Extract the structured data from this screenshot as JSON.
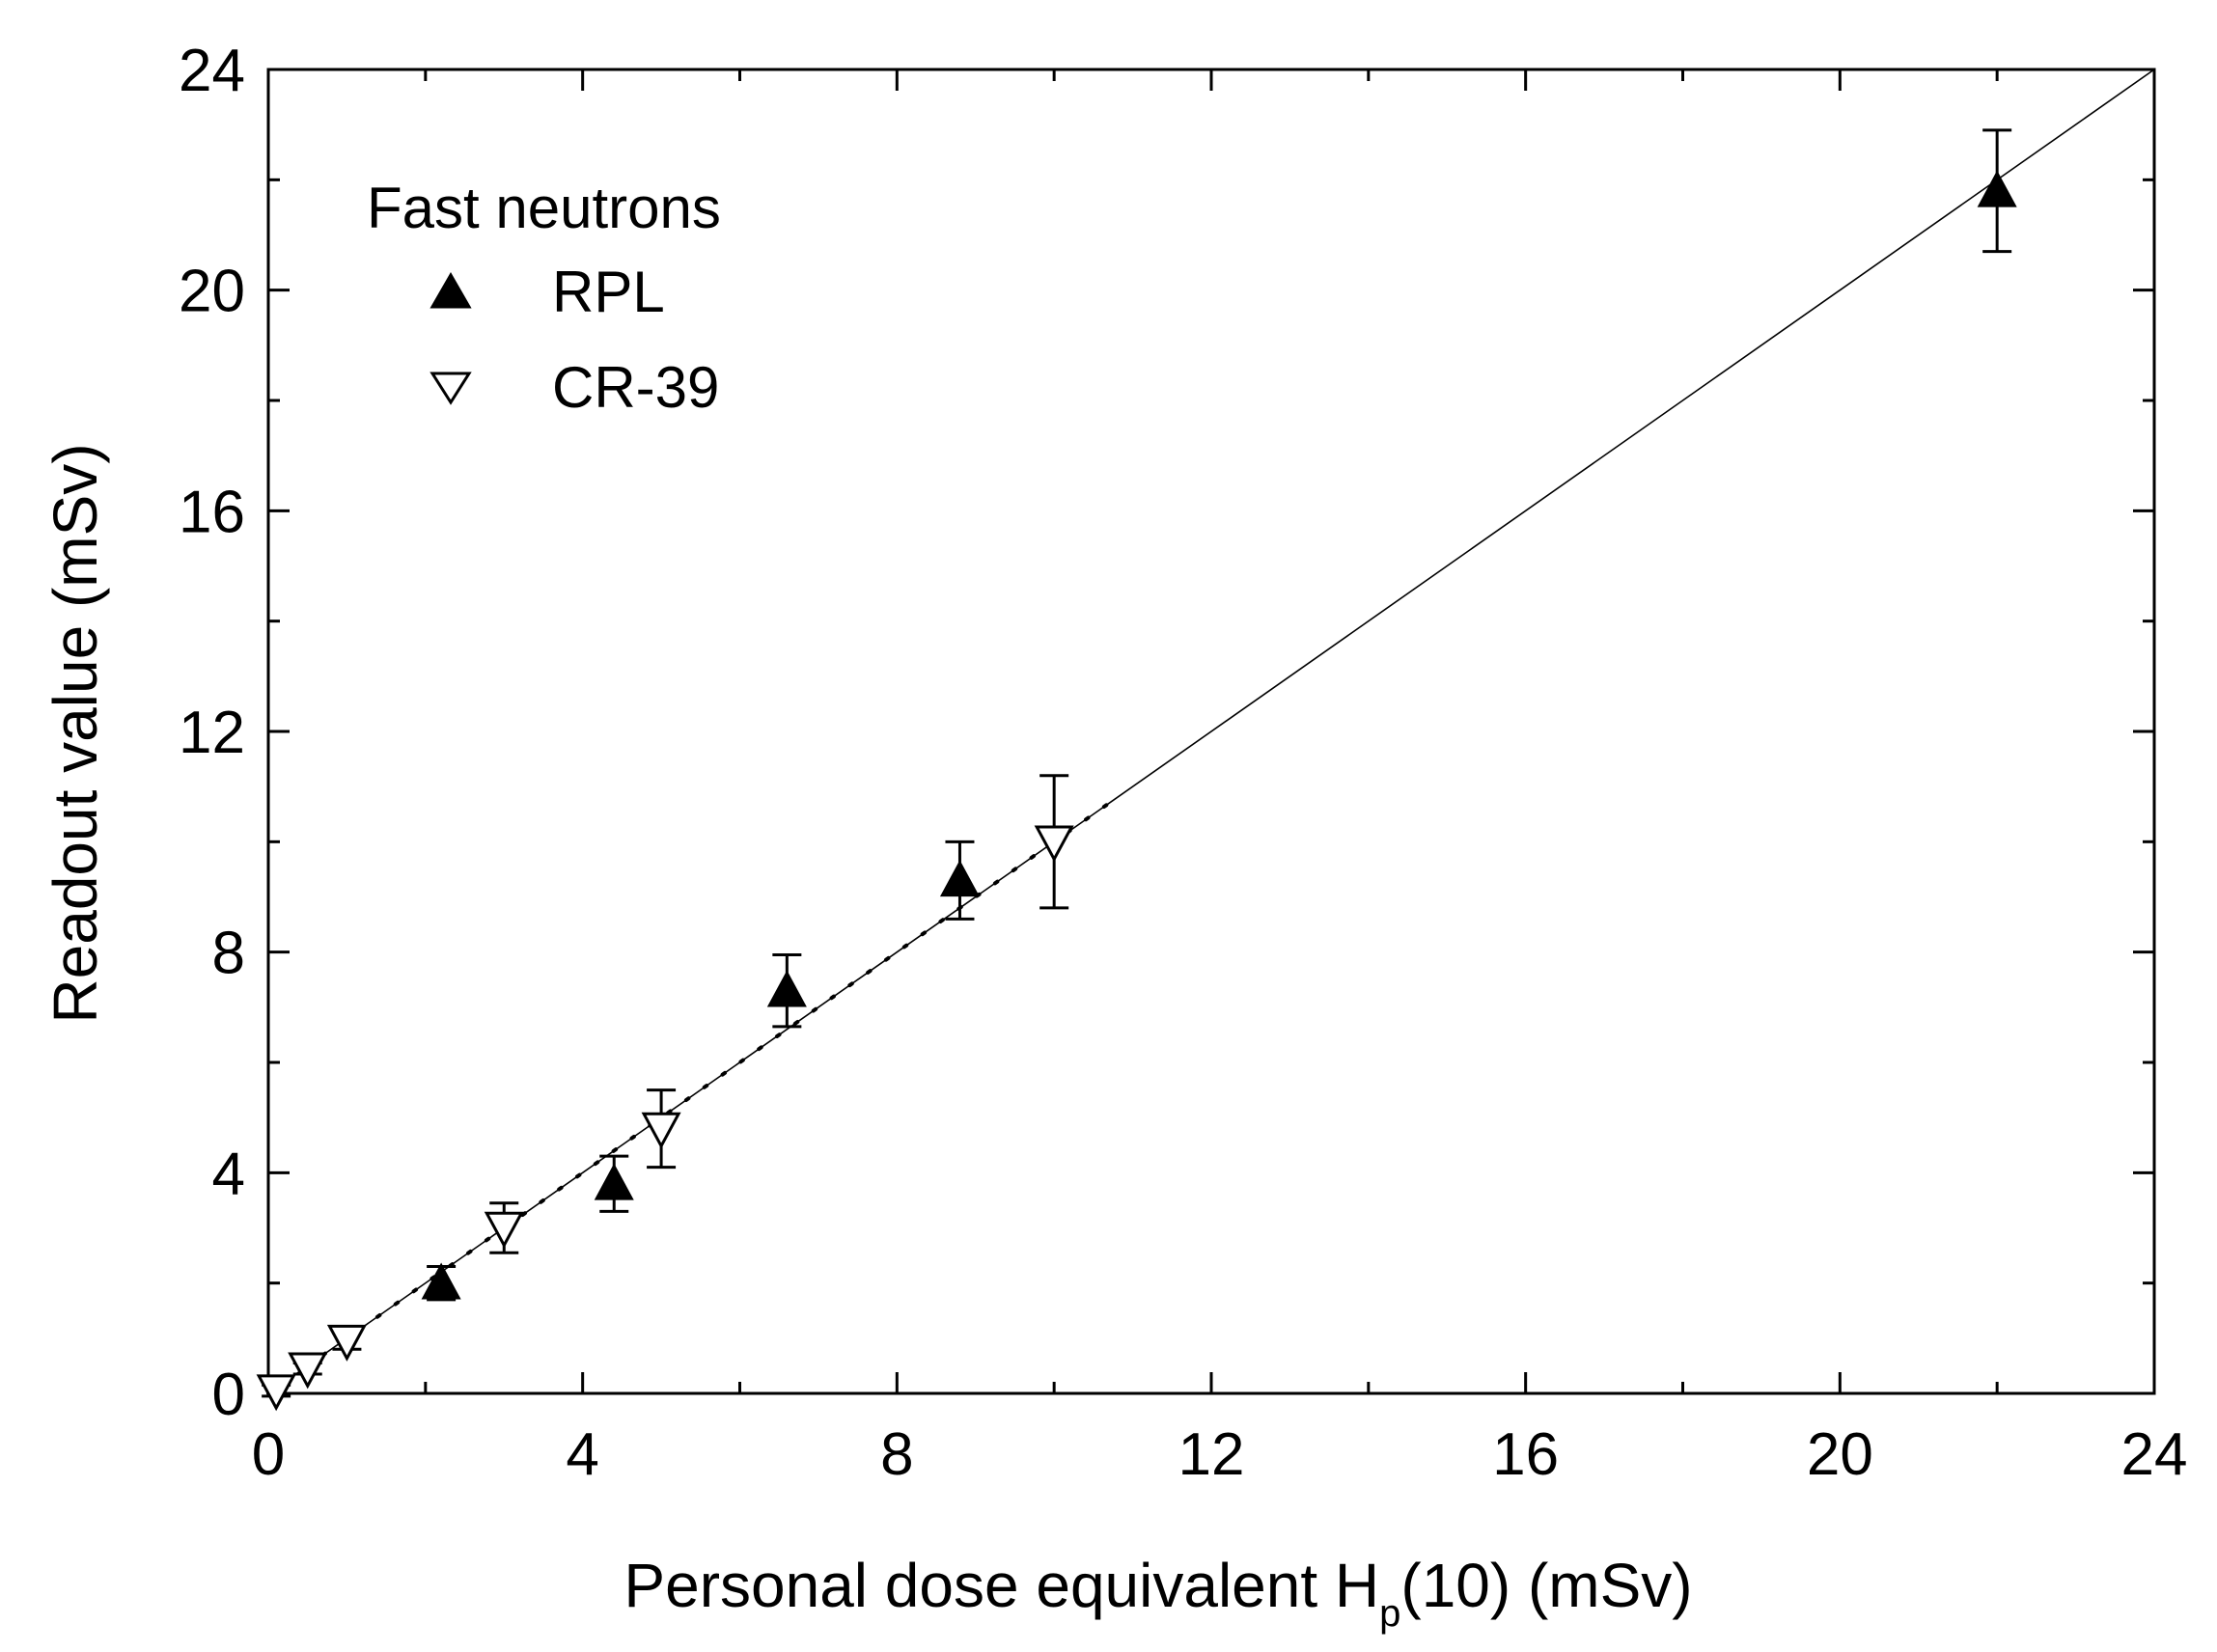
{
  "chart_data": {
    "type": "scatter",
    "title": "",
    "legend_title": "Fast neutrons",
    "legend_position": "top-left",
    "xlabel_main": "Personal dose equivalent H",
    "xlabel_sub": "p",
    "xlabel_tail": "(10) (mSv)",
    "ylabel": "Readout value (mSv)",
    "xlim": [
      0,
      24
    ],
    "ylim": [
      0,
      24
    ],
    "x_ticks": [
      "0",
      "4",
      "8",
      "12",
      "16",
      "20",
      "24"
    ],
    "y_ticks": [
      "0",
      "4",
      "8",
      "12",
      "16",
      "20",
      "24"
    ],
    "grid": false,
    "series": [
      {
        "name": "RPL",
        "marker": "filled-triangle-up",
        "color": "#000000",
        "points": [
          {
            "x": 2.2,
            "y": 2.0,
            "err": 0.3
          },
          {
            "x": 4.4,
            "y": 3.8,
            "err": 0.5
          },
          {
            "x": 6.6,
            "y": 7.3,
            "err": 0.65
          },
          {
            "x": 8.8,
            "y": 9.3,
            "err": 0.7
          },
          {
            "x": 22.0,
            "y": 21.8,
            "err": 1.1
          }
        ]
      },
      {
        "name": "CR-39",
        "marker": "open-triangle-down",
        "color": "#000000",
        "points": [
          {
            "x": 0.1,
            "y": 0.05,
            "err": 0.1
          },
          {
            "x": 0.5,
            "y": 0.45,
            "err": 0.1
          },
          {
            "x": 1.0,
            "y": 0.95,
            "err": 0.15
          },
          {
            "x": 3.0,
            "y": 3.0,
            "err": 0.45
          },
          {
            "x": 5.0,
            "y": 4.8,
            "err": 0.7
          },
          {
            "x": 10.0,
            "y": 10.0,
            "err": 1.2
          }
        ]
      }
    ],
    "reference_lines": [
      {
        "name": "identity",
        "style": "solid",
        "x": [
          0,
          24
        ],
        "y": [
          0,
          24
        ]
      },
      {
        "name": "fit",
        "style": "dotted",
        "x": [
          0,
          10.7
        ],
        "y": [
          0,
          10.7
        ]
      }
    ]
  }
}
